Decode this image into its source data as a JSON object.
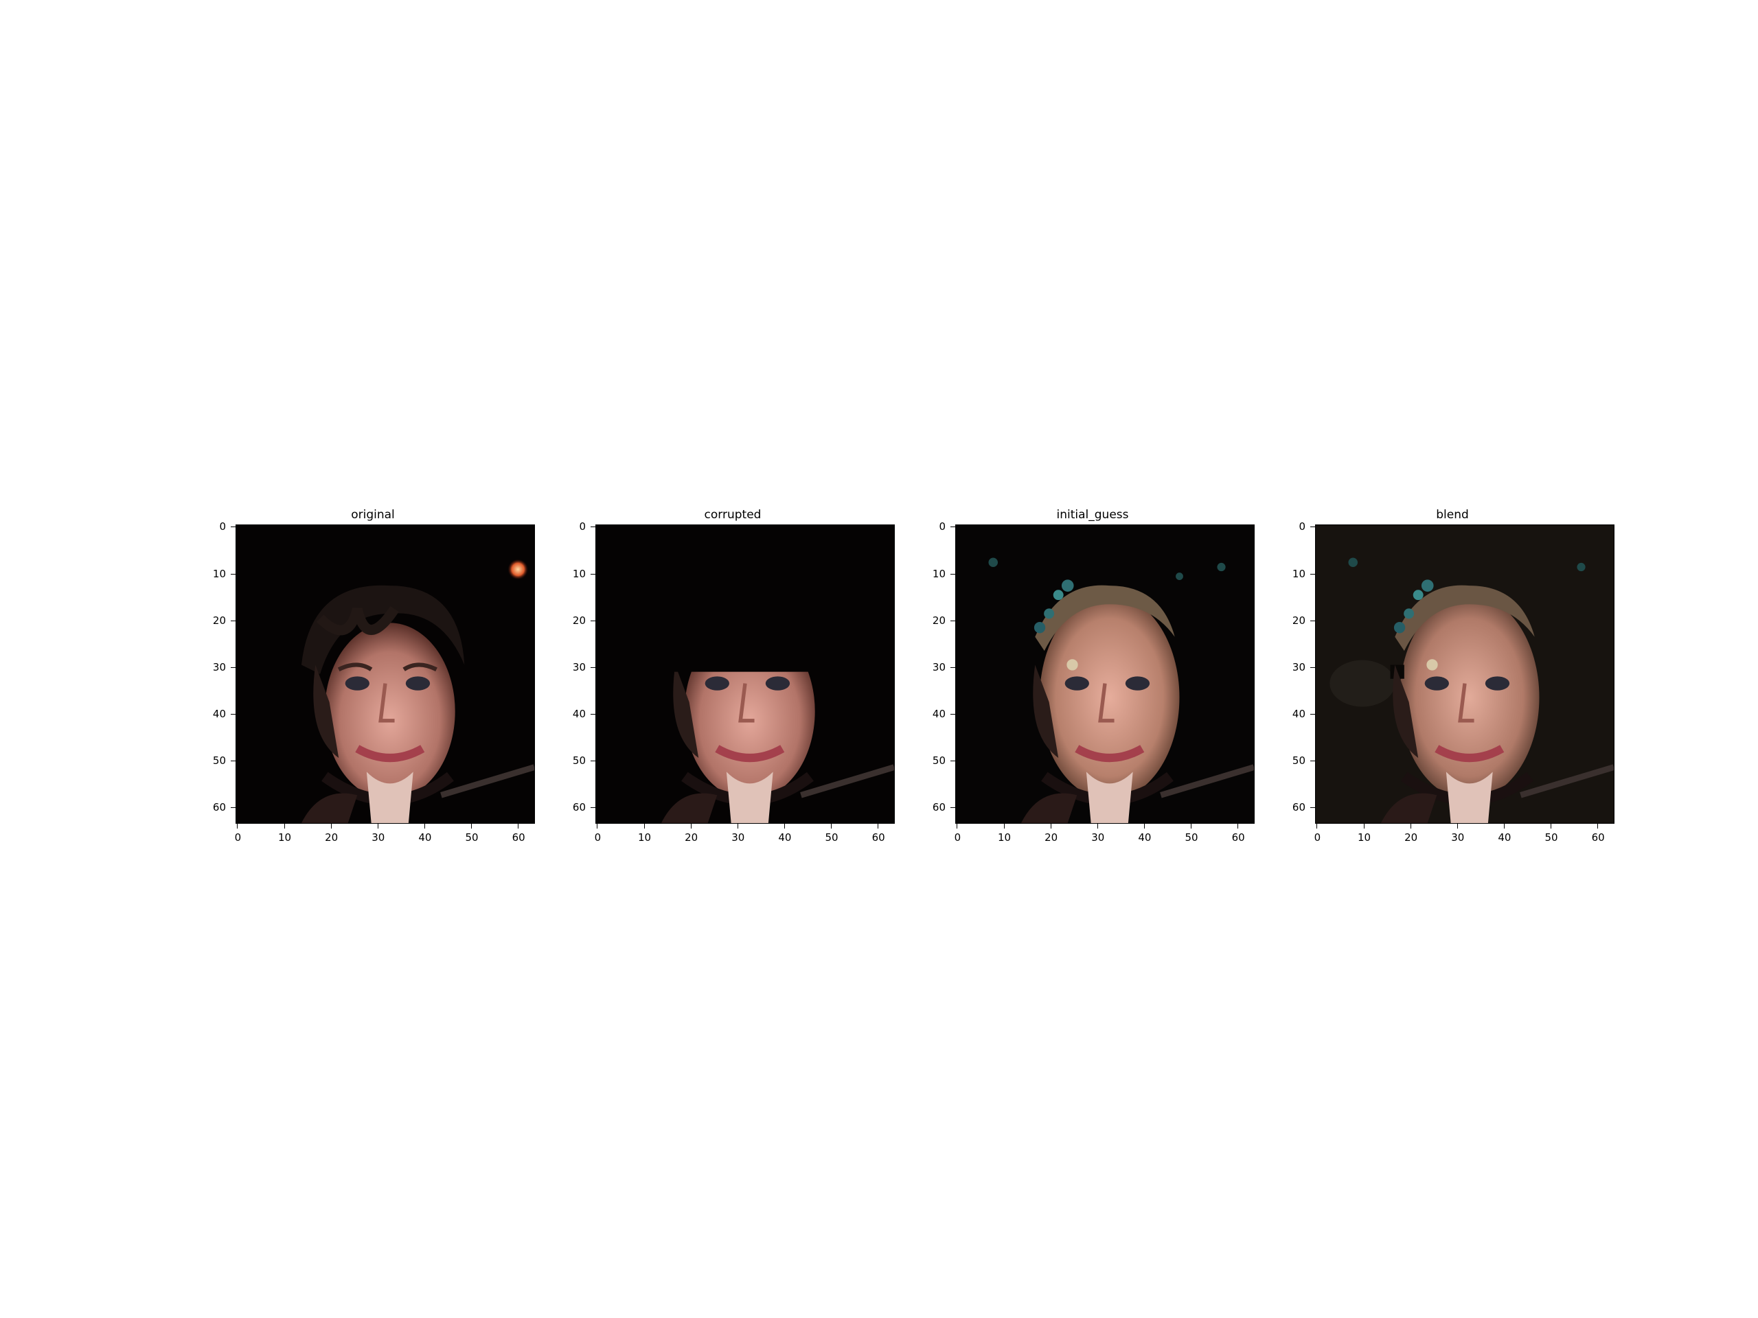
{
  "panels": [
    {
      "title": "original"
    },
    {
      "title": "corrupted"
    },
    {
      "title": "initial_guess"
    },
    {
      "title": "blend"
    }
  ],
  "axes": {
    "y_ticks": [
      "0",
      "10",
      "20",
      "30",
      "40",
      "50",
      "60"
    ],
    "x_ticks": [
      "0",
      "10",
      "20",
      "30",
      "40",
      "50",
      "60"
    ],
    "xlim": [
      -0.5,
      63.5
    ],
    "ylim": [
      63.5,
      -0.5
    ]
  },
  "colors": {
    "background": "#000000",
    "skin": "#c9897a",
    "hair": "#1c1412",
    "teal_artifact": "#2f6f73",
    "highlight": "#e05a2a"
  }
}
